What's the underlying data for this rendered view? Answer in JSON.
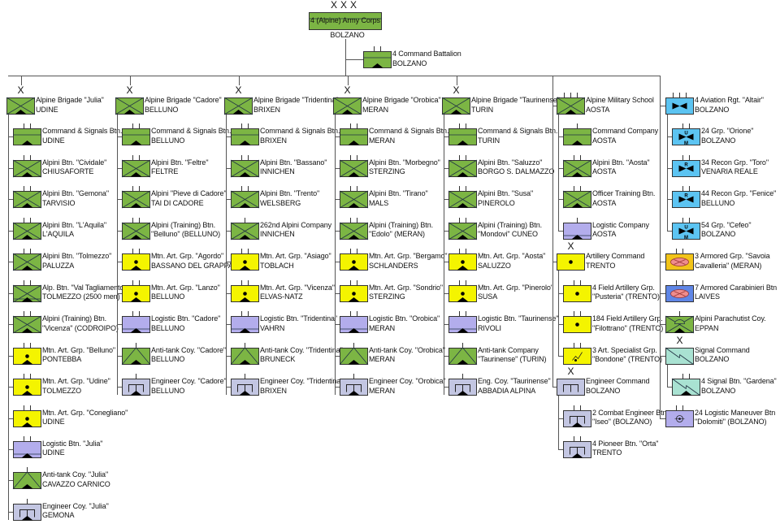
{
  "top": {
    "name": "4 (Alpine) Army Corps",
    "location": "BOLZANO",
    "echelon": "XXX",
    "type": "cmd"
  },
  "command_battalion": {
    "name": "4 Command Battalion",
    "location": "BOLZANO",
    "echelon": "II",
    "type": "cmd"
  },
  "colors": {
    "green": "#7cb544",
    "yellow": "#f4f400",
    "lavender": "#b3adec",
    "engineer": "#c3c6e2",
    "aviation": "#5cc4f2",
    "cavalry": "#f2c419",
    "carabinieri": "#5f86e6",
    "signal": "#a9e2d2",
    "ellipse": "#ef8d8d"
  },
  "brigades": [
    {
      "name": "Alpine Brigade \"Julia\"",
      "location": "UDINE",
      "echelon": "X",
      "type": "inf",
      "units": [
        {
          "l1": "Command & Signals Btn.",
          "l2": "UDINE",
          "type": "cmd",
          "echelon": "II"
        },
        {
          "l1": "Alpini Btn. \"Cividale\"",
          "l2": "CHIUSAFORTE",
          "type": "inf",
          "echelon": "II"
        },
        {
          "l1": "Alpini Btn. \"Gemona\"",
          "l2": "TARVISIO",
          "type": "inf",
          "echelon": "II"
        },
        {
          "l1": "Alpini Btn. \"L'Aquila\"",
          "l2": "L'AQUILA",
          "type": "inf",
          "echelon": "II"
        },
        {
          "l1": "Alpini Btn. \"Tolmezzo\"",
          "l2": "PALUZZA",
          "type": "inf",
          "echelon": "II"
        },
        {
          "l1": "Alp. Btn. \"Val Tagliamento",
          "l2": "TOLMEZZO (2500 men)",
          "type": "infres",
          "echelon": "II"
        },
        {
          "l1": "Alpini (Training) Btn.",
          "l2": "\"Vicenza\" (CODROIPO)",
          "type": "inf",
          "echelon": "II"
        },
        {
          "l1": "Mtn. Art. Grp. \"Belluno\"",
          "l2": "PONTEBBA",
          "type": "art",
          "echelon": "II"
        },
        {
          "l1": "Mtn. Art. Grp. \"Udine\"",
          "l2": "TOLMEZZO",
          "type": "art",
          "echelon": "II"
        },
        {
          "l1": "Mtn. Art. Grp. \"Conegliano\"",
          "l2": "UDINE",
          "type": "art",
          "echelon": "II"
        },
        {
          "l1": "Logistic Btn. \"Julia\"",
          "l2": "UDINE",
          "type": "log",
          "echelon": "II"
        },
        {
          "l1": "Anti-tank Coy. \"Julia\"",
          "l2": "CAVAZZO CARNICO",
          "type": "at",
          "echelon": "I"
        },
        {
          "l1": "Engineer Coy. \"Julia\"",
          "l2": "GEMONA",
          "type": "eng",
          "echelon": "I"
        }
      ]
    },
    {
      "name": "Alpine Brigade \"Cadore\"",
      "location": "BELLUNO",
      "echelon": "X",
      "type": "inf",
      "units": [
        {
          "l1": "Command & Signals Btn.",
          "l2": "BELLUNO",
          "type": "cmd",
          "echelon": "II"
        },
        {
          "l1": "Alpini Btn. \"Feltre\"",
          "l2": "FELTRE",
          "type": "inf",
          "echelon": "II"
        },
        {
          "l1": "Alpini \"Pieve di Cadore\"",
          "l2": "TAI DI CADORE",
          "type": "inf",
          "echelon": "II"
        },
        {
          "l1": "Alpini (Training) Btn.",
          "l2": "\"Belluno\" (BELLUNO)",
          "type": "inf",
          "echelon": "II"
        },
        {
          "l1": "Mtn. Art. Grp. \"Agordo\"",
          "l2": "BASSANO DEL GRAPPA",
          "type": "art",
          "echelon": "II"
        },
        {
          "l1": "Mtn. Art. Grp. \"Lanzo\"",
          "l2": "BELLUNO",
          "type": "art",
          "echelon": "II"
        },
        {
          "l1": "Logistic Btn. \"Cadore\"",
          "l2": "BELLUNO",
          "type": "log",
          "echelon": "II"
        },
        {
          "l1": "Anti-tank Coy. \"Cadore\"",
          "l2": "BELLUNO",
          "type": "at",
          "echelon": "I"
        },
        {
          "l1": "Engineer Coy. \"Cadore\"",
          "l2": "BELLUNO",
          "type": "eng",
          "echelon": "I"
        }
      ]
    },
    {
      "name": "Alpine Brigade \"Tridentina\"",
      "location": "BRIXEN",
      "echelon": "X",
      "type": "inf",
      "units": [
        {
          "l1": "Command & Signals Btn.",
          "l2": "BRIXEN",
          "type": "cmd",
          "echelon": "II"
        },
        {
          "l1": "Alpini Btn. \"Bassano\"",
          "l2": "INNICHEN",
          "type": "inf",
          "echelon": "II"
        },
        {
          "l1": "Alpini Btn. \"Trento\"",
          "l2": "WELSBERG",
          "type": "inf",
          "echelon": "II"
        },
        {
          "l1": "262nd Alpini Company",
          "l2": "INNICHEN",
          "type": "inf",
          "echelon": "I"
        },
        {
          "l1": "Mtn. Art. Grp. \"Asiago\"",
          "l2": "TOBLACH",
          "type": "art",
          "echelon": "II"
        },
        {
          "l1": "Mtn. Art. Grp. \"Vicenza\"",
          "l2": "ELVAS-NATZ",
          "type": "art",
          "echelon": "II"
        },
        {
          "l1": "Logistic Btn. \"Tridentina\"",
          "l2": "VAHRN",
          "type": "log",
          "echelon": "II"
        },
        {
          "l1": "Anti-tank Coy. \"Tridentina\"",
          "l2": "BRUNECK",
          "type": "at",
          "echelon": "I"
        },
        {
          "l1": "Engineer Coy. \"Tridentina",
          "l2": "BRIXEN",
          "type": "eng",
          "echelon": "I"
        }
      ]
    },
    {
      "name": "Alpine Brigade \"Orobica\"",
      "location": "MERAN",
      "echelon": "X",
      "type": "inf",
      "units": [
        {
          "l1": "Command & Signals Btn.",
          "l2": "MERAN",
          "type": "cmd",
          "echelon": "II"
        },
        {
          "l1": "Alpini Btn. \"Morbegno\"",
          "l2": "STERZING",
          "type": "inf",
          "echelon": "II"
        },
        {
          "l1": "Alpini Btn. \"Tirano\"",
          "l2": "MALS",
          "type": "inf",
          "echelon": "II"
        },
        {
          "l1": "Alpini (Training) Btn.",
          "l2": "\"Edolo\" (MERAN)",
          "type": "inf",
          "echelon": "II"
        },
        {
          "l1": "Mtn. Art. Grp. \"Bergamo\"",
          "l2": "SCHLANDERS",
          "type": "art",
          "echelon": "II"
        },
        {
          "l1": "Mtn. Art. Grp. \"Sondrio\"",
          "l2": "STERZING",
          "type": "art",
          "echelon": "II"
        },
        {
          "l1": "Logistic Btn. \"Orobica\"",
          "l2": "MERAN",
          "type": "log",
          "echelon": "II"
        },
        {
          "l1": "Anti-tank Coy. \"Orobica\"",
          "l2": "MERAN",
          "type": "at",
          "echelon": "I"
        },
        {
          "l1": "Engineer Coy. \"Orobica\"",
          "l2": "MERAN",
          "type": "eng",
          "echelon": "I"
        }
      ]
    },
    {
      "name": "Alpine Brigade \"Taurinense\"",
      "location": "TURIN",
      "echelon": "X",
      "type": "inf",
      "units": [
        {
          "l1": "Command & Signals Btn.",
          "l2": "TURIN",
          "type": "cmd",
          "echelon": "II"
        },
        {
          "l1": "Alpini Btn. \"Saluzzo\"",
          "l2": "BORGO S. DALMAZZO",
          "type": "inf",
          "echelon": "II"
        },
        {
          "l1": "Alpini Btn. \"Susa\"",
          "l2": "PINEROLO",
          "type": "inf",
          "echelon": "II"
        },
        {
          "l1": "Alpini (Training) Btn.",
          "l2": "\"Mondovi\" CUNEO",
          "type": "inf",
          "echelon": "II"
        },
        {
          "l1": "Mtn. Art. Grp. \"Aosta\"",
          "l2": "SALUZZO",
          "type": "art",
          "echelon": "II"
        },
        {
          "l1": "Mtn. Art. Grp. \"Pinerolo\"",
          "l2": "SUSA",
          "type": "art",
          "echelon": "II"
        },
        {
          "l1": "Logistic Btn. \"Taurinense\"",
          "l2": "RIVOLI",
          "type": "log",
          "echelon": "II"
        },
        {
          "l1": "Anti-tank Company",
          "l2": "\"Taurinense\" (TURIN)",
          "type": "at",
          "echelon": "I"
        },
        {
          "l1": "Eng. Coy. \"Taurinense\"",
          "l2": "ABBADIA ALPINA",
          "type": "eng",
          "echelon": "I"
        }
      ]
    }
  ],
  "school_column": [
    {
      "l1": "Alpine Military School",
      "l2": "AOSTA",
      "type": "inf",
      "echelon": "III",
      "units": [
        {
          "l1": "Command Company",
          "l2": "AOSTA",
          "type": "cmd",
          "echelon": "I"
        },
        {
          "l1": "Alpini Btn. \"Aosta\"",
          "l2": "AOSTA",
          "type": "inf",
          "echelon": "II"
        },
        {
          "l1": "Officer Training Btn.",
          "l2": "AOSTA",
          "type": "inf",
          "echelon": "II"
        },
        {
          "l1": "Logistic Company",
          "l2": "AOSTA",
          "type": "log",
          "echelon": "I"
        }
      ]
    },
    {
      "l1": "Artillery Command",
      "l2": "TRENTO",
      "type": "artf",
      "echelon": "X",
      "units": [
        {
          "l1": "4 Field Artillery Grp.",
          "l2": "\"Pusteria\" (TRENTO)",
          "type": "artf",
          "echelon": "II"
        },
        {
          "l1": "184 Field Artillery Grp.",
          "l2": "\"Filottrano\" (TRENTO)",
          "type": "artf",
          "echelon": "II"
        },
        {
          "l1": "3 Art. Specialist Grp.",
          "l2": "\"Bondone\" (TRENTO)",
          "type": "artspec",
          "echelon": "II"
        }
      ]
    },
    {
      "l1": "Engineer Command",
      "l2": "BOLZANO",
      "type": "eng",
      "echelon": "X",
      "units": [
        {
          "l1": "2 Combat Engineer Btn",
          "l2": "\"Iseo\" (BOLZANO)",
          "type": "eng",
          "echelon": "II"
        },
        {
          "l1": "4 Pioneer Btn. \"Orta\"",
          "l2": "TRENTO",
          "type": "eng",
          "echelon": "II"
        }
      ]
    }
  ],
  "support_column": [
    {
      "l1": "4 Aviation Rgt. \"Altair\"",
      "l2": "BOLZANO",
      "type": "avi",
      "echelon": "III",
      "units": [
        {
          "l1": "24 Grp. \"Orione\"",
          "l2": "BOLZANO",
          "type": "avi",
          "mark": "U M",
          "echelon": "II"
        },
        {
          "l1": "34 Recon Grp. \"Toro\"",
          "l2": "VENARIA REALE",
          "type": "avi",
          "mark": "R",
          "echelon": "II"
        },
        {
          "l1": "44 Recon Grp. \"Fenice\"",
          "l2": "BELLUNO",
          "type": "avi",
          "mark": "R",
          "echelon": "II"
        },
        {
          "l1": "54 Grp. \"Cefeo\"",
          "l2": "BOLZANO",
          "type": "avi",
          "mark": "U M",
          "echelon": "II"
        }
      ]
    },
    {
      "l1": "3 Armored Grp. \"Savoia",
      "l2": "Cavalleria\" (MERAN)",
      "type": "cav",
      "echelon": "II",
      "units": []
    },
    {
      "l1": "7 Armored Carabinieri Btn",
      "l2": "LAIVES",
      "type": "car",
      "echelon": "II",
      "units": []
    },
    {
      "l1": "Alpini Parachutist Coy.",
      "l2": "EPPAN",
      "type": "para",
      "echelon": "I",
      "units": []
    },
    {
      "l1": "Signal Command",
      "l2": "BOLZANO",
      "type": "sig",
      "echelon": "X",
      "units": [
        {
          "l1": "4 Signal Btn. \"Gardena\"",
          "l2": "BOLZANO",
          "type": "sig",
          "echelon": "II"
        }
      ]
    },
    {
      "l1": "24 Logistic Maneuver Btn",
      "l2": "\"Dolomiti\" (BOLZANO)",
      "type": "logm",
      "echelon": "II",
      "units": []
    }
  ]
}
